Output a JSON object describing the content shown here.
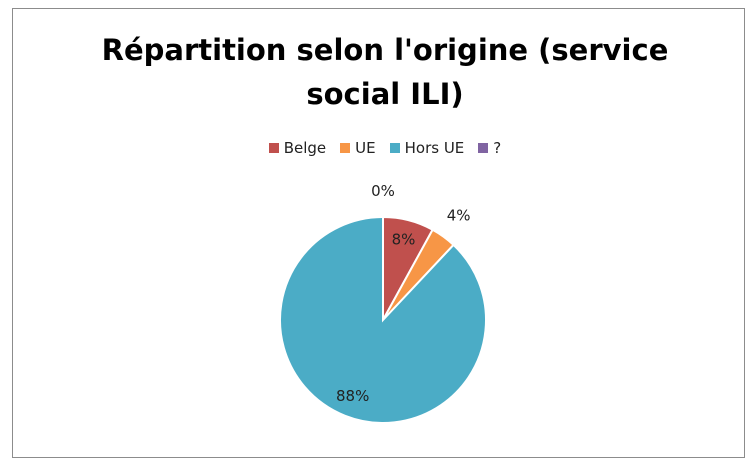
{
  "chart_data": {
    "type": "pie",
    "title": "Répartition selon l'origine (service social ILI)",
    "categories": [
      "Belge",
      "UE",
      "Hors UE",
      "?"
    ],
    "values": [
      8,
      4,
      88,
      0
    ],
    "value_labels": [
      "8%",
      "4%",
      "88%",
      "0%"
    ],
    "colors": [
      "#c0504d",
      "#f79646",
      "#4bacc6",
      "#8064a2"
    ],
    "legend": "top"
  }
}
